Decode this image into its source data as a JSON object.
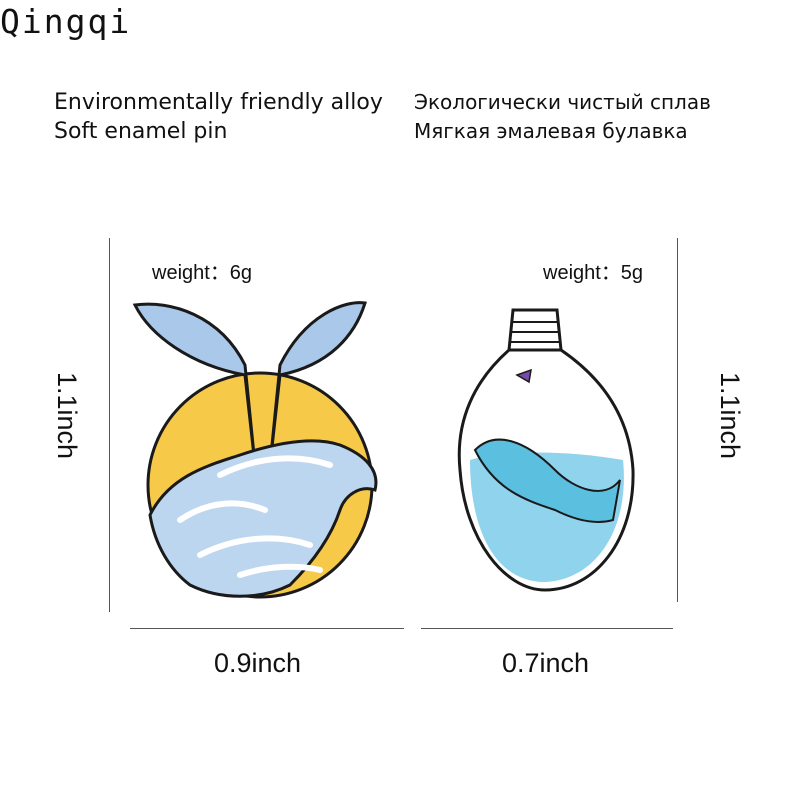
{
  "brand": "Qingqi",
  "description_en": {
    "line1": "Environmentally friendly alloy",
    "line2": "Soft enamel pin"
  },
  "description_ru": {
    "line1": "Экологически чистый сплав",
    "line2": "Мягкая эмалевая булавка"
  },
  "products": [
    {
      "illustration": "whale-tail-waves-sun-pin",
      "weight": "weight：6g",
      "height": "1.1inch",
      "width": "0.9inch"
    },
    {
      "illustration": "whale-in-lightbulb-pin",
      "weight": "weight：5g",
      "height": "1.1inch",
      "width": "0.7inch"
    }
  ],
  "colors": {
    "sun": "#f7c948",
    "wave_blue": "#9fc5e8",
    "whale_blue": "#5bbfe0",
    "outline": "#1a1a1a"
  }
}
